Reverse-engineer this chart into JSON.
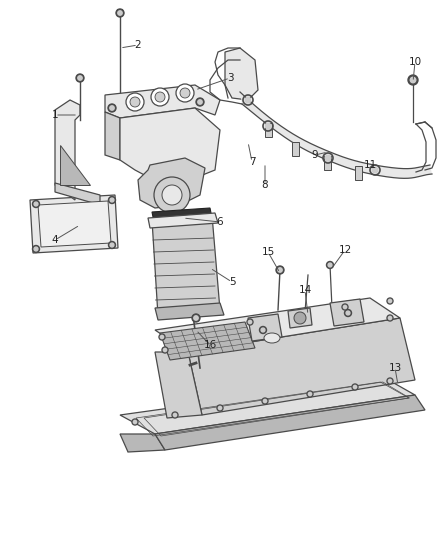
{
  "bg_color": "#ffffff",
  "line_color": "#4a4a4a",
  "fill_light": "#e8e8e8",
  "fill_mid": "#d0d0d0",
  "fill_dark": "#b8b8b8",
  "label_color": "#222222",
  "label_fontsize": 7.5,
  "figsize": [
    4.38,
    5.33
  ],
  "dpi": 100
}
